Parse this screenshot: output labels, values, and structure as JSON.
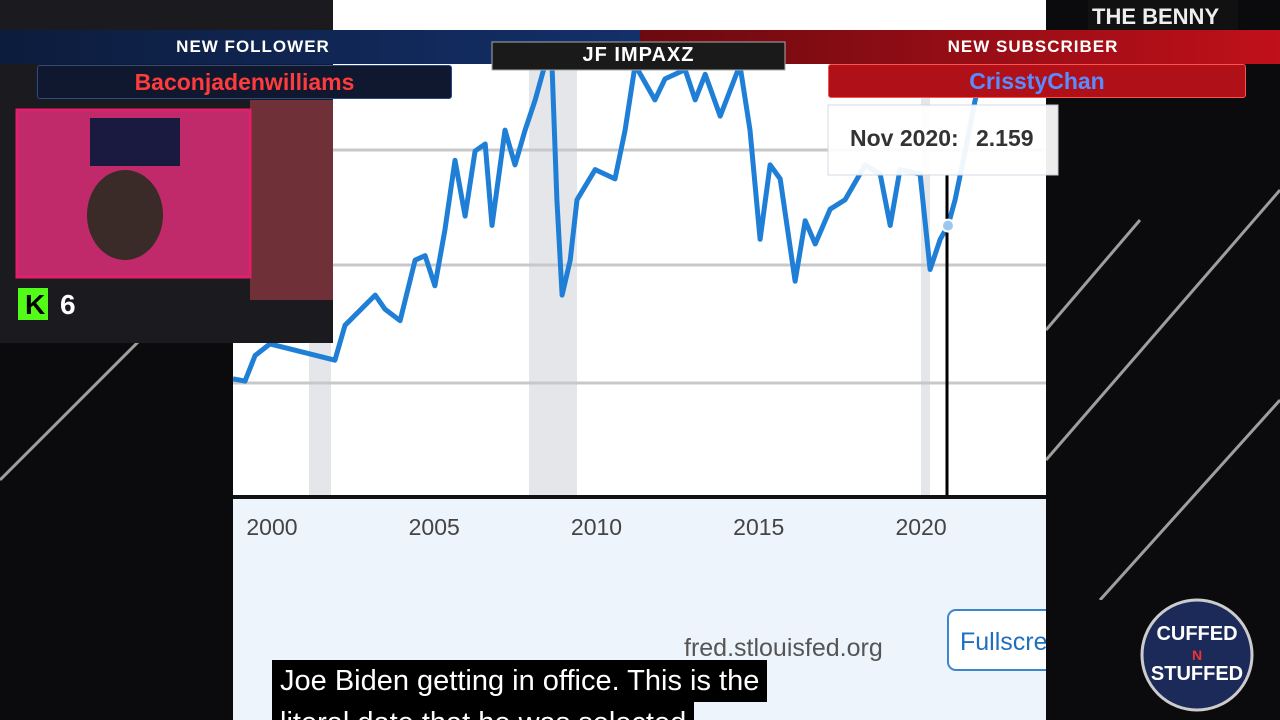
{
  "overlay": {
    "follower_label": "NEW FOLLOWER",
    "follower_name": "Baconjadenwilliams",
    "streamer": "JF IMPAXZ",
    "subscriber_label": "NEW SUBSCRIBER",
    "subscriber_name": "CrisstyChan",
    "kick_count": 6,
    "corner_logo": "THE BENNY",
    "badge": [
      "CUFFED",
      "N",
      "STUFFED"
    ]
  },
  "chart_data": {
    "type": "line",
    "color": "#1f7fd6",
    "x": [
      1998.8,
      1999.17,
      1999.48,
      1999.94,
      2001.94,
      2002.25,
      2003.18,
      2003.48,
      2003.95,
      2004.41,
      2004.72,
      2005.02,
      2005.33,
      2005.64,
      2005.95,
      2006.26,
      2006.57,
      2006.78,
      2007.18,
      2007.49,
      2007.8,
      2008.11,
      2008.41,
      2008.63,
      2008.78,
      2008.94,
      2009.19,
      2009.4,
      2009.96,
      2010.57,
      2010.88,
      2011.19,
      2011.8,
      2012.11,
      2012.73,
      2013.04,
      2013.35,
      2013.81,
      2014.42,
      2014.73,
      2015.04,
      2015.35,
      2015.66,
      2016.12,
      2016.43,
      2016.74,
      2017.2,
      2017.66,
      2018.28,
      2018.74,
      2019.05,
      2019.35,
      2019.97,
      2020.28,
      2020.59,
      2020.83,
      2021.05,
      2021.36,
      2021.67,
      2021.97
    ],
    "values": [
      1.5,
      1.49,
      1.6,
      1.65,
      1.58,
      1.73,
      1.86,
      1.8,
      1.75,
      2.01,
      2.03,
      1.9,
      2.14,
      2.44,
      2.2,
      2.48,
      2.51,
      2.16,
      2.57,
      2.42,
      2.57,
      2.7,
      2.85,
      2.85,
      2.27,
      1.86,
      2.01,
      2.27,
      2.4,
      2.36,
      2.57,
      2.85,
      2.7,
      2.79,
      2.83,
      2.7,
      2.81,
      2.63,
      2.85,
      2.57,
      2.1,
      2.42,
      2.36,
      1.92,
      2.18,
      2.08,
      2.23,
      2.27,
      2.42,
      2.38,
      2.16,
      2.4,
      2.38,
      1.97,
      2.1,
      2.159,
      2.27,
      2.48,
      2.7,
      2.85
    ],
    "xlim": [
      1998.8,
      2023.85
    ],
    "ylim": [
      1.0,
      2.85
    ],
    "xticks": [
      2000,
      2005,
      2010,
      2015,
      2020
    ],
    "tooltip": {
      "label": "Nov 2020:",
      "value": 2.159
    },
    "source": "fred.stlouisfed.org",
    "button": "Fullscre"
  },
  "caption": {
    "lines": [
      "Joe Biden getting in office. This is the",
      "literal date that he was selected"
    ]
  }
}
